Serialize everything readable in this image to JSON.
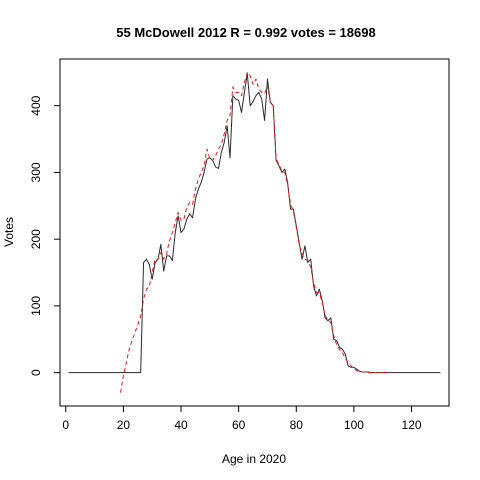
{
  "chart_data": {
    "type": "line",
    "title": "55 McDowell 2012 R = 0.992 votes = 18698",
    "xlabel": "Age in 2020",
    "ylabel": "Votes",
    "xlim": [
      -2,
      133
    ],
    "ylim": [
      -50,
      470
    ],
    "x_ticks": [
      0,
      20,
      40,
      60,
      80,
      100,
      120
    ],
    "y_ticks": [
      0,
      100,
      200,
      300,
      400
    ],
    "grid": false,
    "legend": "none",
    "series": [
      {
        "style": "solid",
        "color": "#2b2b2b",
        "x": [
          1,
          2,
          3,
          4,
          5,
          6,
          7,
          8,
          9,
          10,
          11,
          12,
          13,
          14,
          15,
          16,
          17,
          18,
          19,
          20,
          21,
          22,
          23,
          24,
          25,
          26,
          27,
          28,
          29,
          30,
          31,
          32,
          33,
          34,
          35,
          36,
          37,
          38,
          39,
          40,
          41,
          42,
          43,
          44,
          45,
          46,
          47,
          48,
          49,
          50,
          51,
          52,
          53,
          54,
          55,
          56,
          57,
          58,
          59,
          60,
          61,
          62,
          63,
          64,
          65,
          66,
          67,
          68,
          69,
          70,
          71,
          72,
          73,
          74,
          75,
          76,
          77,
          78,
          79,
          80,
          81,
          82,
          83,
          84,
          85,
          86,
          87,
          88,
          89,
          90,
          91,
          92,
          93,
          94,
          95,
          96,
          97,
          98,
          99,
          100,
          101,
          102,
          103,
          104,
          105,
          106,
          107,
          108,
          109,
          110,
          111,
          112,
          113,
          114,
          115,
          116,
          117,
          118,
          119,
          120,
          121,
          122,
          123,
          124,
          125,
          126,
          127,
          128,
          129,
          130
        ],
        "y": [
          0,
          0,
          0,
          0,
          0,
          0,
          0,
          0,
          0,
          0,
          0,
          0,
          0,
          0,
          0,
          0,
          0,
          0,
          0,
          0,
          0,
          0,
          0,
          0,
          0,
          0,
          165,
          170,
          162,
          140,
          165,
          170,
          192,
          152,
          175,
          175,
          168,
          210,
          235,
          210,
          215,
          230,
          238,
          232,
          260,
          275,
          285,
          300,
          320,
          322,
          318,
          308,
          306,
          330,
          345,
          370,
          322,
          415,
          410,
          408,
          390,
          420,
          448,
          400,
          406,
          415,
          420,
          410,
          378,
          440,
          405,
          400,
          318,
          310,
          300,
          305,
          285,
          245,
          245,
          220,
          195,
          170,
          190,
          165,
          170,
          130,
          115,
          125,
          108,
          82,
          78,
          82,
          50,
          48,
          38,
          35,
          28,
          10,
          8,
          8,
          5,
          2,
          1,
          1,
          1,
          0,
          0,
          0,
          0,
          0,
          0,
          0,
          0,
          0,
          0,
          0,
          0,
          0,
          0,
          0,
          0,
          0,
          0,
          0,
          0,
          0,
          0,
          0,
          0,
          0
        ]
      },
      {
        "style": "dashed",
        "color": "#e41a1c",
        "x": [
          19,
          20,
          21,
          22,
          23,
          24,
          25,
          26,
          27,
          28,
          29,
          30,
          31,
          32,
          33,
          34,
          35,
          36,
          37,
          38,
          39,
          40,
          41,
          42,
          43,
          44,
          45,
          46,
          47,
          48,
          49,
          50,
          51,
          52,
          53,
          54,
          55,
          56,
          57,
          58,
          59,
          60,
          61,
          62,
          63,
          64,
          65,
          66,
          67,
          68,
          69,
          70,
          71,
          72,
          73,
          74,
          75,
          76,
          77,
          78,
          79,
          80,
          81,
          82,
          83,
          84,
          85,
          86,
          87,
          88,
          89,
          90,
          91,
          92,
          93,
          94,
          95,
          96,
          97,
          98,
          99,
          100,
          101,
          102,
          103,
          104,
          105,
          106,
          107,
          108,
          109,
          110,
          111,
          112
        ],
        "y": [
          -30,
          -5,
          15,
          35,
          48,
          60,
          72,
          85,
          110,
          125,
          130,
          150,
          170,
          170,
          180,
          170,
          178,
          198,
          210,
          225,
          240,
          228,
          230,
          248,
          255,
          252,
          275,
          290,
          300,
          310,
          335,
          320,
          318,
          325,
          335,
          342,
          358,
          378,
          385,
          428,
          420,
          420,
          415,
          435,
          450,
          445,
          432,
          440,
          425,
          420,
          418,
          430,
          405,
          400,
          320,
          312,
          302,
          300,
          282,
          252,
          242,
          218,
          192,
          178,
          170,
          168,
          158,
          135,
          120,
          120,
          105,
          86,
          78,
          75,
          55,
          42,
          35,
          30,
          22,
          15,
          10,
          6,
          3,
          2,
          1,
          1,
          0,
          0,
          0,
          0,
          0,
          0,
          0,
          0
        ]
      }
    ]
  }
}
